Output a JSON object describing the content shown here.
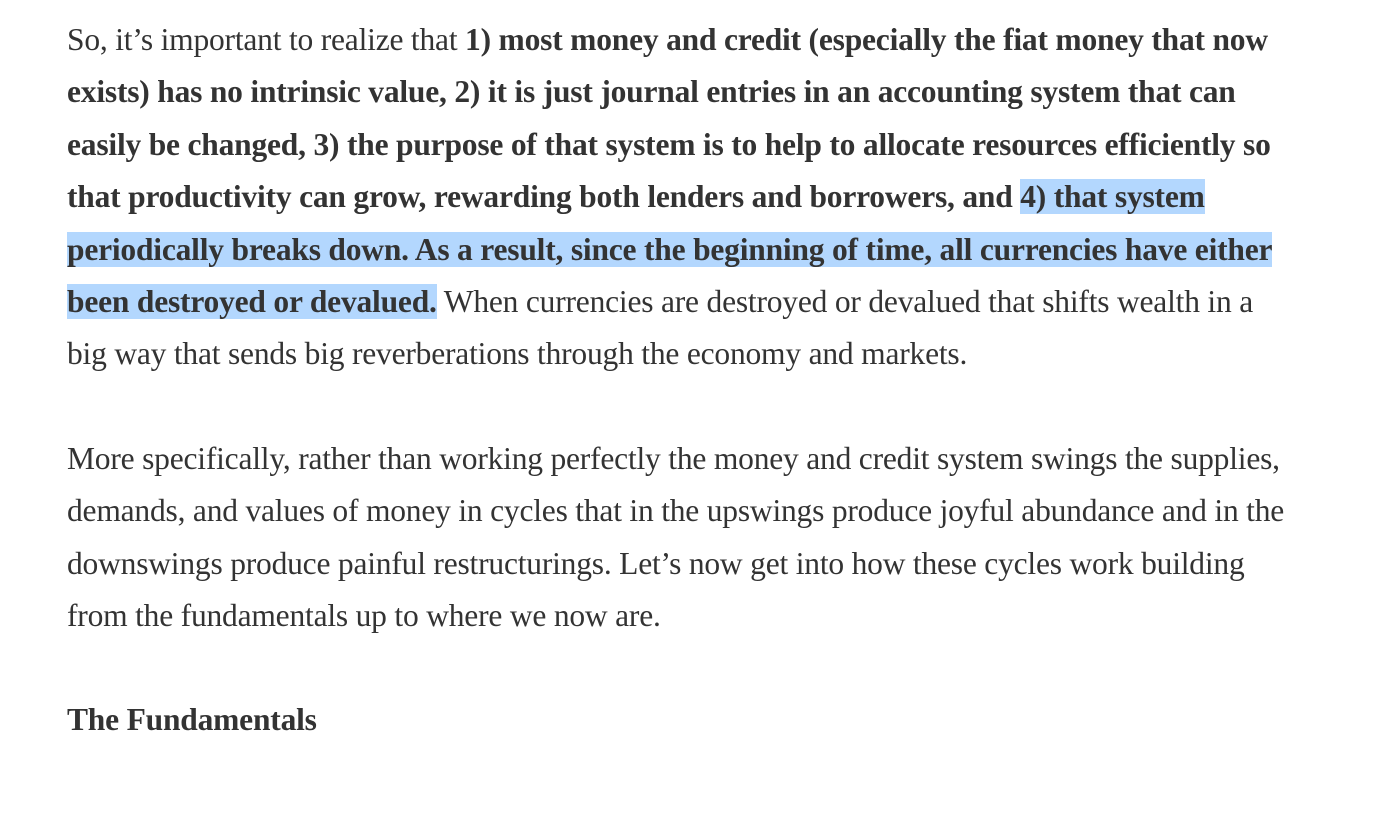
{
  "article": {
    "para1": {
      "intro": "So, it’s important to realize that ",
      "bold_before_highlight": "1) most money and credit (especially the fiat money that now exists) has no intrinsic value, 2) it is just journal entries in an accounting system that can easily be changed, 3) the purpose of that system is to help to allocate resources efficiently so that productivity can grow, rewarding both lenders and borrowers, and ",
      "bold_highlighted": "4) that system periodically breaks down.  As a result, since the beginning of time, all currencies have either been destroyed or devalued.",
      "tail": "  When currencies are destroyed or devalued that shifts wealth in a big way that sends big reverberations through the economy and markets."
    },
    "para2": "More specifically, rather than working perfectly the money and credit system swings the supplies, demands, and values of money in cycles that in the upswings produce joyful abundance and in the downswings produce painful restructurings.  Let’s now get into how these cycles work building from the fundamentals up to where we now are.",
    "section_heading": "The Fundamentals"
  },
  "colors": {
    "text": "#333333",
    "selection_highlight": "#b3d7fe",
    "background": "#ffffff"
  }
}
